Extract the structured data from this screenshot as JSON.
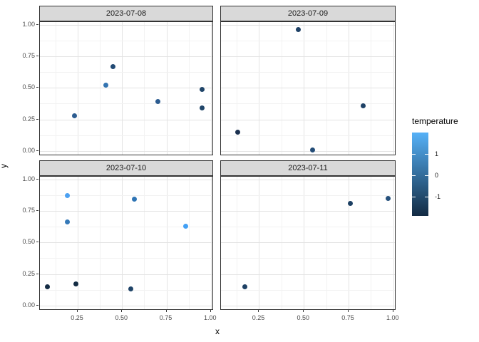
{
  "chart_data": {
    "type": "scatter",
    "title": "",
    "xlabel": "x",
    "ylabel": "y",
    "facet_titles": [
      "2023-07-08",
      "2023-07-09",
      "2023-07-10",
      "2023-07-11"
    ],
    "x_ticks": {
      "values": [
        0.25,
        0.5,
        0.75,
        1.0
      ],
      "labels": [
        "0.25",
        "0.50",
        "0.75",
        "1.00"
      ]
    },
    "y_ticks": {
      "values": [
        1.0,
        0.75,
        0.5,
        0.25,
        0.0
      ],
      "labels": [
        "1.00",
        "0.75",
        "0.50",
        "0.25",
        "0.00"
      ]
    },
    "minor_grid_x": [
      0.125,
      0.375,
      0.625,
      0.875
    ],
    "minor_grid_y": [
      0.125,
      0.375,
      0.625,
      0.875
    ],
    "x_domain": [
      0.037,
      1.017
    ],
    "y_domain": [
      -0.04,
      1.02
    ],
    "grid": "major+minor",
    "legend_position": "right",
    "facets": [
      {
        "label": "2023-07-08",
        "points": [
          {
            "x": 0.23,
            "y": 0.28,
            "temperature": -0.2,
            "color": "#2c5c90"
          },
          {
            "x": 0.41,
            "y": 0.52,
            "temperature": 0.4,
            "color": "#3374b1"
          },
          {
            "x": 0.45,
            "y": 0.67,
            "temperature": -0.7,
            "color": "#224a74"
          },
          {
            "x": 0.7,
            "y": 0.39,
            "temperature": -0.2,
            "color": "#2c5c90"
          },
          {
            "x": 0.95,
            "y": 0.49,
            "temperature": -0.9,
            "color": "#204569"
          },
          {
            "x": 0.95,
            "y": 0.34,
            "temperature": -0.9,
            "color": "#204569"
          }
        ]
      },
      {
        "label": "2023-07-09",
        "points": [
          {
            "x": 0.47,
            "y": 0.96,
            "temperature": -1.0,
            "color": "#1e4166"
          },
          {
            "x": 0.83,
            "y": 0.36,
            "temperature": -1.0,
            "color": "#1e4166"
          },
          {
            "x": 0.55,
            "y": 0.01,
            "temperature": -0.7,
            "color": "#234c77"
          },
          {
            "x": 0.13,
            "y": 0.15,
            "temperature": -1.4,
            "color": "#1b3150"
          }
        ]
      },
      {
        "label": "2023-07-10",
        "points": [
          {
            "x": 0.08,
            "y": 0.15,
            "temperature": -1.8,
            "color": "#152c45"
          },
          {
            "x": 0.19,
            "y": 0.87,
            "temperature": 1.7,
            "color": "#4da1f2"
          },
          {
            "x": 0.19,
            "y": 0.66,
            "temperature": 0.5,
            "color": "#3579b8"
          },
          {
            "x": 0.24,
            "y": 0.17,
            "temperature": -1.9,
            "color": "#132b43"
          },
          {
            "x": 0.57,
            "y": 0.84,
            "temperature": 0.4,
            "color": "#2e74b4"
          },
          {
            "x": 0.55,
            "y": 0.13,
            "temperature": -1.0,
            "color": "#1f4468"
          },
          {
            "x": 0.86,
            "y": 0.63,
            "temperature": 1.6,
            "color": "#42a0f5"
          }
        ]
      },
      {
        "label": "2023-07-11",
        "points": [
          {
            "x": 0.17,
            "y": 0.15,
            "temperature": -1.0,
            "color": "#1e4165"
          },
          {
            "x": 0.76,
            "y": 0.81,
            "temperature": -1.1,
            "color": "#1d4063"
          },
          {
            "x": 0.97,
            "y": 0.85,
            "temperature": -0.6,
            "color": "#26517c"
          }
        ]
      }
    ],
    "legend": {
      "title": "temperature",
      "tick_values": [
        1,
        0,
        -1
      ],
      "tick_labels": [
        "1",
        "0",
        "-1"
      ],
      "value_range": [
        -1.92,
        2.02
      ],
      "gradient_high": "#56b1f7",
      "gradient_low": "#132b43"
    }
  }
}
